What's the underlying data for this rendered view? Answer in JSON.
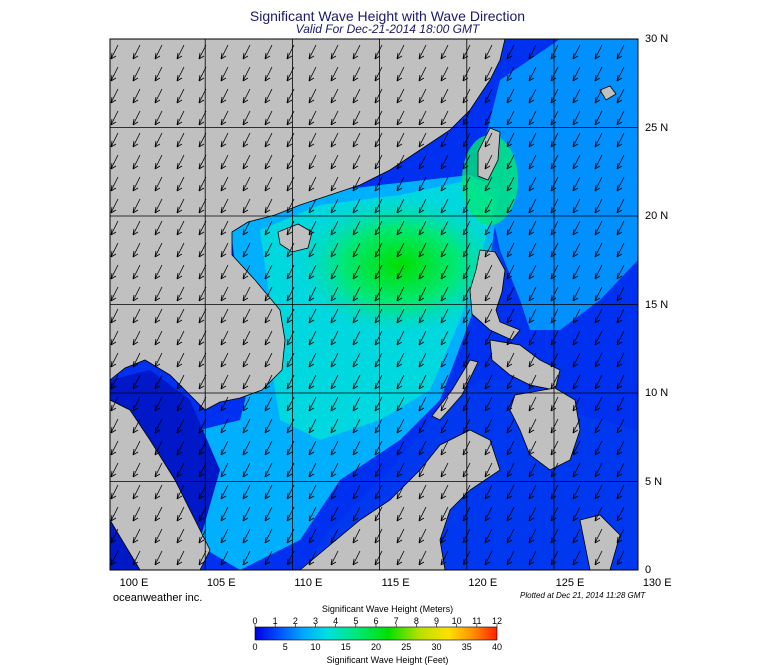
{
  "title": "Significant Wave Height with Wave Direction",
  "subtitle": "Valid For Dec-21-2014 18:00 GMT",
  "lon_labels": [
    "100 E",
    "105 E",
    "110 E",
    "115 E",
    "120 E",
    "125 E",
    "130 E"
  ],
  "lat_labels": [
    "30 N",
    "25 N",
    "20 N",
    "15 N",
    "10 N",
    "5 N",
    "0"
  ],
  "credit": "oceanweather inc.",
  "plotted": "Plotted at Dec 21, 2014 11:28 GMT",
  "colorbar": {
    "meters_title": "Significant Wave Height (Meters)",
    "feet_title": "Significant Wave Height (Feet)",
    "meters_ticks": [
      "0",
      "1",
      "2",
      "3",
      "4",
      "5",
      "6",
      "7",
      "8",
      "9",
      "10",
      "11",
      "12"
    ],
    "feet_ticks": [
      "0",
      "5",
      "10",
      "15",
      "20",
      "25",
      "30",
      "35",
      "40"
    ],
    "colors": [
      "#0000e0",
      "#0050ff",
      "#0090ff",
      "#00c8ff",
      "#00e6c8",
      "#00e878",
      "#00e000",
      "#60e000",
      "#b8e000",
      "#ffe000",
      "#ffb000",
      "#ff6000",
      "#ff2000"
    ]
  },
  "colors": {
    "land": "#c0c0c0",
    "coast": "#000000",
    "grid": "#000000",
    "arrow": "#000000"
  }
}
